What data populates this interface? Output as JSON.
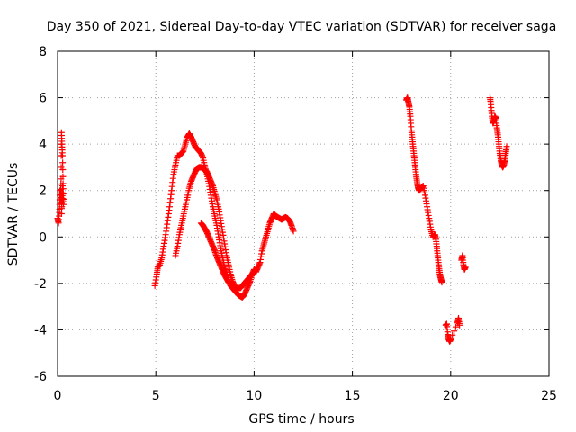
{
  "chart_data": {
    "type": "scatter",
    "title": "Day 350 of 2021, Sidereal Day-to-day VTEC variation (SDTVAR) for receiver saga",
    "xlabel": "GPS time / hours",
    "ylabel": "SDTVAR / TECUs",
    "xlim": [
      0,
      25
    ],
    "ylim": [
      -6,
      8
    ],
    "x_ticks": [
      0,
      5,
      10,
      15,
      20,
      25
    ],
    "y_ticks": [
      -6,
      -4,
      -2,
      0,
      2,
      4,
      6,
      8
    ],
    "grid": true,
    "marker": "+",
    "color": "#ff0000",
    "segments": [
      [
        [
          0.0,
          0.8
        ],
        [
          0.05,
          0.6
        ],
        [
          0.1,
          1.2
        ],
        [
          0.12,
          2.0
        ],
        [
          0.15,
          1.6
        ],
        [
          0.18,
          2.5
        ],
        [
          0.2,
          4.5
        ],
        [
          0.22,
          4.0
        ],
        [
          0.25,
          3.5
        ],
        [
          0.28,
          2.3
        ],
        [
          0.3,
          1.4
        ],
        [
          0.22,
          1.9
        ],
        [
          0.2,
          1.0
        ],
        [
          0.25,
          2.2
        ]
      ],
      [
        [
          4.95,
          -2.1
        ],
        [
          5.05,
          -1.6
        ],
        [
          5.1,
          -1.3
        ],
        [
          5.2,
          -1.2
        ],
        [
          5.3,
          -0.9
        ],
        [
          5.4,
          -0.4
        ],
        [
          5.5,
          0.1
        ],
        [
          5.6,
          0.7
        ],
        [
          5.7,
          1.3
        ],
        [
          5.8,
          2.0
        ],
        [
          5.9,
          2.7
        ],
        [
          6.0,
          3.1
        ],
        [
          6.1,
          3.5
        ],
        [
          6.2,
          3.5
        ],
        [
          6.3,
          3.6
        ],
        [
          6.4,
          3.7
        ],
        [
          6.5,
          4.0
        ],
        [
          6.6,
          4.3
        ],
        [
          6.7,
          4.45
        ],
        [
          6.8,
          4.3
        ],
        [
          6.9,
          4.1
        ],
        [
          7.0,
          3.9
        ],
        [
          7.1,
          3.8
        ],
        [
          7.2,
          3.7
        ],
        [
          7.3,
          3.6
        ],
        [
          7.4,
          3.4
        ],
        [
          7.5,
          3.0
        ],
        [
          7.6,
          2.7
        ],
        [
          7.7,
          2.3
        ],
        [
          7.8,
          1.8
        ],
        [
          7.9,
          1.3
        ],
        [
          8.0,
          0.9
        ],
        [
          8.1,
          0.5
        ],
        [
          8.2,
          0.0
        ],
        [
          8.3,
          -0.5
        ],
        [
          8.4,
          -0.9
        ],
        [
          8.5,
          -1.3
        ],
        [
          8.6,
          -1.6
        ],
        [
          8.7,
          -1.9
        ],
        [
          8.8,
          -2.1
        ],
        [
          8.9,
          -2.2
        ],
        [
          9.0,
          -2.3
        ],
        [
          9.1,
          -2.4
        ],
        [
          9.2,
          -2.5
        ],
        [
          9.3,
          -2.55
        ],
        [
          9.4,
          -2.6
        ],
        [
          9.5,
          -2.5
        ],
        [
          9.6,
          -2.3
        ],
        [
          9.7,
          -2.1
        ],
        [
          9.8,
          -1.9
        ],
        [
          9.9,
          -1.6
        ],
        [
          10.0,
          -1.4
        ],
        [
          10.1,
          -1.5
        ],
        [
          10.2,
          -1.3
        ],
        [
          10.3,
          -1.1
        ],
        [
          10.4,
          -0.6
        ],
        [
          10.5,
          -0.3
        ],
        [
          10.6,
          0.0
        ],
        [
          10.7,
          0.3
        ],
        [
          10.8,
          0.6
        ],
        [
          10.9,
          0.8
        ],
        [
          11.0,
          1.0
        ],
        [
          11.1,
          0.9
        ],
        [
          11.2,
          0.85
        ],
        [
          11.3,
          0.8
        ],
        [
          11.4,
          0.75
        ],
        [
          11.5,
          0.8
        ],
        [
          11.6,
          0.85
        ],
        [
          11.7,
          0.8
        ],
        [
          11.8,
          0.7
        ],
        [
          11.9,
          0.5
        ],
        [
          12.0,
          0.25
        ]
      ],
      [
        [
          6.0,
          -0.8
        ],
        [
          6.1,
          -0.4
        ],
        [
          6.2,
          0.1
        ],
        [
          6.3,
          0.5
        ],
        [
          6.4,
          0.9
        ],
        [
          6.5,
          1.3
        ],
        [
          6.6,
          1.7
        ],
        [
          6.7,
          2.1
        ],
        [
          6.8,
          2.4
        ],
        [
          6.9,
          2.6
        ],
        [
          7.0,
          2.8
        ],
        [
          7.1,
          2.95
        ],
        [
          7.2,
          3.0
        ],
        [
          7.3,
          3.0
        ],
        [
          7.4,
          2.95
        ],
        [
          7.5,
          2.9
        ],
        [
          7.6,
          2.8
        ],
        [
          7.7,
          2.6
        ],
        [
          7.8,
          2.4
        ],
        [
          7.9,
          2.2
        ],
        [
          8.0,
          1.9
        ],
        [
          8.1,
          1.6
        ],
        [
          8.2,
          1.2
        ],
        [
          8.3,
          0.7
        ],
        [
          8.4,
          0.2
        ],
        [
          8.5,
          -0.3
        ],
        [
          8.6,
          -0.8
        ],
        [
          8.7,
          -1.2
        ],
        [
          8.8,
          -1.6
        ],
        [
          8.9,
          -1.9
        ],
        [
          9.0,
          -2.1
        ],
        [
          9.1,
          -2.2
        ],
        [
          9.2,
          -2.2
        ],
        [
          9.3,
          -2.2
        ],
        [
          9.4,
          -2.1
        ],
        [
          9.5,
          -2.0
        ],
        [
          9.6,
          -1.9
        ],
        [
          9.7,
          -1.8
        ],
        [
          9.8,
          -1.7
        ],
        [
          9.9,
          -1.6
        ],
        [
          10.0,
          -1.5
        ]
      ],
      [
        [
          7.3,
          0.6
        ],
        [
          7.4,
          0.5
        ],
        [
          7.5,
          0.35
        ],
        [
          7.6,
          0.2
        ],
        [
          7.7,
          0.0
        ],
        [
          7.8,
          -0.2
        ],
        [
          7.9,
          -0.4
        ],
        [
          8.0,
          -0.6
        ],
        [
          8.1,
          -0.85
        ],
        [
          8.2,
          -1.05
        ],
        [
          8.3,
          -1.25
        ],
        [
          8.4,
          -1.45
        ],
        [
          8.5,
          -1.65
        ],
        [
          8.6,
          -1.8
        ],
        [
          8.7,
          -1.95
        ],
        [
          8.8,
          -2.0
        ],
        [
          8.9,
          -2.05
        ]
      ],
      [
        [
          17.75,
          5.9
        ],
        [
          17.8,
          6.0
        ],
        [
          17.85,
          5.8
        ],
        [
          17.9,
          5.6
        ],
        [
          17.95,
          5.2
        ],
        [
          18.0,
          4.6
        ],
        [
          18.05,
          4.2
        ],
        [
          18.1,
          3.8
        ],
        [
          18.15,
          3.4
        ],
        [
          18.2,
          3.0
        ],
        [
          18.25,
          2.6
        ],
        [
          18.3,
          2.3
        ],
        [
          18.35,
          2.1
        ],
        [
          18.4,
          2.0
        ],
        [
          18.5,
          2.1
        ],
        [
          18.6,
          2.2
        ],
        [
          18.7,
          1.8
        ],
        [
          18.8,
          1.3
        ],
        [
          18.9,
          0.8
        ],
        [
          19.0,
          0.3
        ],
        [
          19.1,
          0.0
        ],
        [
          19.2,
          0.1
        ],
        [
          19.25,
          -0.1
        ],
        [
          19.3,
          -0.5
        ],
        [
          19.35,
          -0.9
        ],
        [
          19.4,
          -1.3
        ],
        [
          19.45,
          -1.6
        ],
        [
          19.5,
          -1.8
        ],
        [
          19.55,
          -1.95
        ]
      ],
      [
        [
          19.75,
          -3.8
        ],
        [
          19.8,
          -3.75
        ],
        [
          19.85,
          -4.2
        ],
        [
          19.9,
          -4.4
        ],
        [
          19.95,
          -4.5
        ],
        [
          20.0,
          -4.4
        ],
        [
          20.35,
          -3.7
        ],
        [
          20.4,
          -3.5
        ],
        [
          20.45,
          -3.8
        ]
      ],
      [
        [
          20.55,
          -1.0
        ],
        [
          20.6,
          -0.8
        ],
        [
          20.65,
          -1.2
        ],
        [
          20.7,
          -1.4
        ],
        [
          20.75,
          -1.3
        ]
      ],
      [
        [
          22.0,
          6.0
        ],
        [
          22.05,
          5.7
        ],
        [
          22.1,
          5.2
        ],
        [
          22.15,
          4.9
        ],
        [
          22.2,
          5.0
        ],
        [
          22.25,
          5.2
        ],
        [
          22.3,
          5.1
        ],
        [
          22.35,
          4.7
        ],
        [
          22.4,
          4.4
        ],
        [
          22.45,
          4.0
        ],
        [
          22.5,
          3.6
        ],
        [
          22.55,
          3.3
        ],
        [
          22.6,
          3.1
        ],
        [
          22.65,
          3.0
        ],
        [
          22.7,
          3.1
        ],
        [
          22.75,
          3.3
        ],
        [
          22.8,
          3.6
        ],
        [
          22.85,
          3.9
        ]
      ]
    ]
  }
}
